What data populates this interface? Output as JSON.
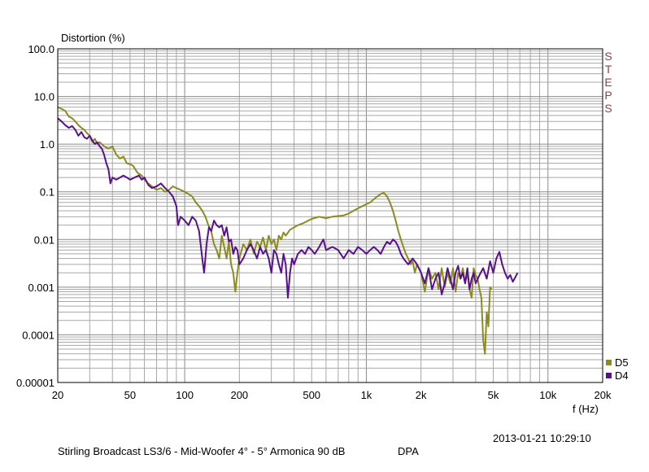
{
  "chart_data": {
    "type": "line",
    "ylabel": "Distortion (%)",
    "xlabel": "f (Hz)",
    "x_scale": "log",
    "y_scale": "log",
    "xlim": [
      20,
      20000
    ],
    "ylim": [
      1e-05,
      100
    ],
    "grid": true,
    "legend_position": "bottom-right",
    "x_ticks": [
      {
        "value": 20,
        "label": "20"
      },
      {
        "value": 50,
        "label": "50"
      },
      {
        "value": 100,
        "label": "100"
      },
      {
        "value": 200,
        "label": "200"
      },
      {
        "value": 500,
        "label": "500"
      },
      {
        "value": 1000,
        "label": "1k"
      },
      {
        "value": 2000,
        "label": "2k"
      },
      {
        "value": 5000,
        "label": "5k"
      },
      {
        "value": 10000,
        "label": "10k"
      },
      {
        "value": 20000,
        "label": "20k"
      }
    ],
    "y_ticks": [
      {
        "value": 100,
        "label": "100.0"
      },
      {
        "value": 10,
        "label": "10.0"
      },
      {
        "value": 1,
        "label": "1.0"
      },
      {
        "value": 0.1,
        "label": "0.1"
      },
      {
        "value": 0.01,
        "label": "0.01"
      },
      {
        "value": 0.001,
        "label": "0.001"
      },
      {
        "value": 0.0001,
        "label": "0.0001"
      },
      {
        "value": 1e-05,
        "label": "0.00001"
      }
    ],
    "series": [
      {
        "name": "D5",
        "color": "#8c8c1e",
        "points": [
          [
            20,
            6.0
          ],
          [
            21,
            5.5
          ],
          [
            22,
            5.0
          ],
          [
            23,
            3.8
          ],
          [
            24,
            3.5
          ],
          [
            25,
            3.0
          ],
          [
            26,
            2.5
          ],
          [
            27,
            2.2
          ],
          [
            28,
            2.0
          ],
          [
            29,
            1.7
          ],
          [
            30,
            1.5
          ],
          [
            31,
            1.1
          ],
          [
            32,
            1.3
          ],
          [
            33,
            1.0
          ],
          [
            34,
            1.1
          ],
          [
            36,
            0.9
          ],
          [
            38,
            0.8
          ],
          [
            40,
            0.9
          ],
          [
            42,
            0.6
          ],
          [
            44,
            0.5
          ],
          [
            46,
            0.55
          ],
          [
            48,
            0.4
          ],
          [
            50,
            0.38
          ],
          [
            52,
            0.35
          ],
          [
            55,
            0.25
          ],
          [
            58,
            0.22
          ],
          [
            60,
            0.18
          ],
          [
            63,
            0.15
          ],
          [
            66,
            0.13
          ],
          [
            70,
            0.11
          ],
          [
            74,
            0.12
          ],
          [
            78,
            0.1
          ],
          [
            82,
            0.11
          ],
          [
            86,
            0.13
          ],
          [
            90,
            0.12
          ],
          [
            95,
            0.11
          ],
          [
            100,
            0.1
          ],
          [
            105,
            0.09
          ],
          [
            110,
            0.08
          ],
          [
            115,
            0.06
          ],
          [
            120,
            0.05
          ],
          [
            125,
            0.04
          ],
          [
            130,
            0.03
          ],
          [
            135,
            0.02
          ],
          [
            140,
            0.015
          ],
          [
            145,
            0.008
          ],
          [
            150,
            0.006
          ],
          [
            155,
            0.004
          ],
          [
            160,
            0.012
          ],
          [
            165,
            0.007
          ],
          [
            170,
            0.004
          ],
          [
            175,
            0.009
          ],
          [
            180,
            0.003
          ],
          [
            185,
            0.002
          ],
          [
            190,
            0.0008
          ],
          [
            195,
            0.002
          ],
          [
            200,
            0.004
          ],
          [
            210,
            0.008
          ],
          [
            220,
            0.006
          ],
          [
            230,
            0.01
          ],
          [
            240,
            0.005
          ],
          [
            250,
            0.009
          ],
          [
            260,
            0.007
          ],
          [
            270,
            0.011
          ],
          [
            280,
            0.006
          ],
          [
            290,
            0.012
          ],
          [
            300,
            0.008
          ],
          [
            310,
            0.01
          ],
          [
            320,
            0.006
          ],
          [
            330,
            0.012
          ],
          [
            340,
            0.01
          ],
          [
            350,
            0.014
          ],
          [
            360,
            0.012
          ],
          [
            380,
            0.016
          ],
          [
            400,
            0.018
          ],
          [
            420,
            0.02
          ],
          [
            450,
            0.022
          ],
          [
            480,
            0.025
          ],
          [
            500,
            0.027
          ],
          [
            550,
            0.03
          ],
          [
            600,
            0.028
          ],
          [
            650,
            0.03
          ],
          [
            700,
            0.031
          ],
          [
            750,
            0.032
          ],
          [
            800,
            0.035
          ],
          [
            850,
            0.04
          ],
          [
            900,
            0.045
          ],
          [
            950,
            0.05
          ],
          [
            1000,
            0.055
          ],
          [
            1050,
            0.06
          ],
          [
            1100,
            0.07
          ],
          [
            1150,
            0.08
          ],
          [
            1200,
            0.09
          ],
          [
            1250,
            0.095
          ],
          [
            1300,
            0.08
          ],
          [
            1350,
            0.06
          ],
          [
            1400,
            0.04
          ],
          [
            1450,
            0.025
          ],
          [
            1500,
            0.015
          ],
          [
            1550,
            0.01
          ],
          [
            1600,
            0.007
          ],
          [
            1650,
            0.005
          ],
          [
            1700,
            0.004
          ],
          [
            1750,
            0.003
          ],
          [
            1800,
            0.0035
          ],
          [
            1850,
            0.002
          ],
          [
            1900,
            0.003
          ],
          [
            1950,
            0.0025
          ],
          [
            2000,
            0.002
          ],
          [
            2100,
            0.0008
          ],
          [
            2200,
            0.0025
          ],
          [
            2300,
            0.0015
          ],
          [
            2400,
            0.002
          ],
          [
            2500,
            0.0009
          ],
          [
            2600,
            0.0025
          ],
          [
            2700,
            0.001
          ],
          [
            2800,
            0.002
          ],
          [
            2900,
            0.0012
          ],
          [
            3000,
            0.0025
          ],
          [
            3100,
            0.0008
          ],
          [
            3200,
            0.002
          ],
          [
            3300,
            0.0015
          ],
          [
            3400,
            0.0025
          ],
          [
            3500,
            0.0012
          ],
          [
            3600,
            0.002
          ],
          [
            3700,
            0.0009
          ],
          [
            3800,
            0.0006
          ],
          [
            3900,
            0.0025
          ],
          [
            4000,
            0.0018
          ],
          [
            4100,
            0.0015
          ],
          [
            4200,
            0.0009
          ],
          [
            4300,
            0.0006
          ],
          [
            4400,
            8e-05
          ],
          [
            4500,
            4e-05
          ],
          [
            4600,
            0.0003
          ],
          [
            4700,
            0.00015
          ],
          [
            4800,
            0.001
          ],
          [
            4900,
            0.0009
          ]
        ]
      },
      {
        "name": "D4",
        "color": "#5a0f8c",
        "points": [
          [
            20,
            3.5
          ],
          [
            21,
            3.0
          ],
          [
            22,
            2.5
          ],
          [
            23,
            2.2
          ],
          [
            24,
            2.4
          ],
          [
            25,
            2.0
          ],
          [
            26,
            1.5
          ],
          [
            27,
            1.8
          ],
          [
            28,
            1.4
          ],
          [
            29,
            1.3
          ],
          [
            30,
            1.5
          ],
          [
            31,
            1.2
          ],
          [
            32,
            1.0
          ],
          [
            33,
            1.1
          ],
          [
            34,
            0.9
          ],
          [
            35,
            0.8
          ],
          [
            36,
            0.6
          ],
          [
            37,
            0.4
          ],
          [
            38,
            0.3
          ],
          [
            39,
            0.15
          ],
          [
            40,
            0.2
          ],
          [
            42,
            0.18
          ],
          [
            44,
            0.2
          ],
          [
            46,
            0.22
          ],
          [
            48,
            0.2
          ],
          [
            50,
            0.18
          ],
          [
            53,
            0.2
          ],
          [
            56,
            0.22
          ],
          [
            58,
            0.18
          ],
          [
            60,
            0.2
          ],
          [
            63,
            0.14
          ],
          [
            66,
            0.12
          ],
          [
            70,
            0.13
          ],
          [
            74,
            0.15
          ],
          [
            78,
            0.12
          ],
          [
            82,
            0.1
          ],
          [
            86,
            0.08
          ],
          [
            90,
            0.05
          ],
          [
            92,
            0.02
          ],
          [
            95,
            0.03
          ],
          [
            100,
            0.025
          ],
          [
            105,
            0.02
          ],
          [
            110,
            0.03
          ],
          [
            115,
            0.025
          ],
          [
            120,
            0.015
          ],
          [
            125,
            0.004
          ],
          [
            128,
            0.002
          ],
          [
            132,
            0.008
          ],
          [
            136,
            0.018
          ],
          [
            140,
            0.015
          ],
          [
            145,
            0.025
          ],
          [
            150,
            0.02
          ],
          [
            155,
            0.018
          ],
          [
            160,
            0.02
          ],
          [
            165,
            0.012
          ],
          [
            170,
            0.018
          ],
          [
            175,
            0.009
          ],
          [
            180,
            0.01
          ],
          [
            185,
            0.005
          ],
          [
            190,
            0.007
          ],
          [
            195,
            0.006
          ],
          [
            200,
            0.003
          ],
          [
            210,
            0.004
          ],
          [
            220,
            0.006
          ],
          [
            230,
            0.008
          ],
          [
            240,
            0.006
          ],
          [
            250,
            0.004
          ],
          [
            260,
            0.007
          ],
          [
            270,
            0.005
          ],
          [
            280,
            0.006
          ],
          [
            290,
            0.004
          ],
          [
            300,
            0.002
          ],
          [
            310,
            0.006
          ],
          [
            320,
            0.005
          ],
          [
            330,
            0.003
          ],
          [
            340,
            0.002
          ],
          [
            350,
            0.005
          ],
          [
            360,
            0.003
          ],
          [
            370,
            0.0006
          ],
          [
            380,
            0.002
          ],
          [
            390,
            0.004
          ],
          [
            400,
            0.003
          ],
          [
            420,
            0.005
          ],
          [
            440,
            0.006
          ],
          [
            460,
            0.005
          ],
          [
            480,
            0.007
          ],
          [
            500,
            0.006
          ],
          [
            520,
            0.005
          ],
          [
            550,
            0.007
          ],
          [
            580,
            0.01
          ],
          [
            600,
            0.006
          ],
          [
            650,
            0.007
          ],
          [
            700,
            0.006
          ],
          [
            750,
            0.004
          ],
          [
            800,
            0.006
          ],
          [
            850,
            0.005
          ],
          [
            900,
            0.007
          ],
          [
            950,
            0.006
          ],
          [
            1000,
            0.005
          ],
          [
            1050,
            0.006
          ],
          [
            1100,
            0.007
          ],
          [
            1150,
            0.006
          ],
          [
            1200,
            0.005
          ],
          [
            1250,
            0.007
          ],
          [
            1300,
            0.009
          ],
          [
            1350,
            0.008
          ],
          [
            1400,
            0.01
          ],
          [
            1450,
            0.009
          ],
          [
            1500,
            0.007
          ],
          [
            1550,
            0.005
          ],
          [
            1600,
            0.004
          ],
          [
            1700,
            0.003
          ],
          [
            1800,
            0.004
          ],
          [
            1900,
            0.003
          ],
          [
            2000,
            0.002
          ],
          [
            2100,
            0.0012
          ],
          [
            2200,
            0.0025
          ],
          [
            2300,
            0.0009
          ],
          [
            2400,
            0.0015
          ],
          [
            2500,
            0.002
          ],
          [
            2600,
            0.0007
          ],
          [
            2700,
            0.0012
          ],
          [
            2800,
            0.0025
          ],
          [
            2900,
            0.0015
          ],
          [
            3000,
            0.0009
          ],
          [
            3100,
            0.002
          ],
          [
            3200,
            0.0028
          ],
          [
            3300,
            0.0015
          ],
          [
            3400,
            0.002
          ],
          [
            3500,
            0.0012
          ],
          [
            3600,
            0.0025
          ],
          [
            3700,
            0.0009
          ],
          [
            3800,
            0.0015
          ],
          [
            3900,
            0.002
          ],
          [
            4000,
            0.0012
          ],
          [
            4200,
            0.0018
          ],
          [
            4400,
            0.0025
          ],
          [
            4600,
            0.0015
          ],
          [
            4800,
            0.0035
          ],
          [
            5000,
            0.002
          ],
          [
            5200,
            0.004
          ],
          [
            5400,
            0.0055
          ],
          [
            5600,
            0.003
          ],
          [
            5800,
            0.002
          ],
          [
            6000,
            0.0015
          ],
          [
            6200,
            0.0018
          ],
          [
            6400,
            0.0013
          ],
          [
            6600,
            0.0016
          ],
          [
            6800,
            0.002
          ]
        ]
      }
    ],
    "annotation_side": "STEPS"
  },
  "footer": {
    "timestamp": "2013-01-21 10:29:10",
    "caption": "Stirling Broadcast LS3/6 - Mid-Woofer 4° - 5° Armonica 90 dB",
    "mic": "DPA"
  }
}
